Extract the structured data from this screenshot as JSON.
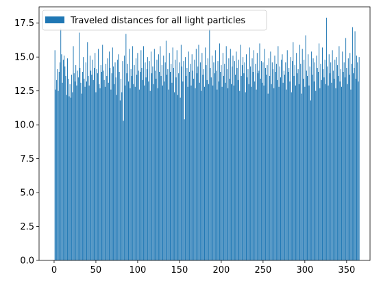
{
  "chart_data": {
    "type": "bar",
    "title": "",
    "xlabel": "",
    "ylabel": "",
    "xlim": [
      -18,
      378
    ],
    "ylim": [
      0,
      18.7
    ],
    "xticks": [
      0,
      50,
      100,
      150,
      200,
      250,
      300,
      350
    ],
    "xtick_labels": [
      "0",
      "50",
      "100",
      "150",
      "200",
      "250",
      "300",
      "350"
    ],
    "yticks": [
      0,
      2.5,
      5,
      7.5,
      10,
      12.5,
      15,
      17.5
    ],
    "ytick_labels": [
      "0.0",
      "2.5",
      "5.0",
      "7.5",
      "10.0",
      "12.5",
      "15.0",
      "17.5"
    ],
    "grid": false,
    "legend_placement": "top-left",
    "bar_color": "#1f77b4",
    "series": [
      {
        "name": "Traveled distances for all light particles",
        "x_start": 1,
        "values": [
          15.5,
          12.6,
          13.3,
          14.1,
          12.5,
          13.9,
          14.6,
          17.1,
          15.2,
          13.1,
          14.8,
          15.1,
          14.3,
          13.6,
          12.2,
          14.9,
          13.4,
          12.1,
          13.0,
          12.0,
          13.7,
          12.4,
          15.8,
          13.8,
          13.2,
          14.4,
          12.9,
          14.0,
          13.5,
          16.8,
          14.2,
          13.1,
          12.3,
          13.9,
          15.0,
          13.4,
          12.8,
          14.6,
          13.2,
          16.1,
          13.6,
          12.9,
          15.1,
          14.0,
          13.7,
          14.8,
          13.3,
          14.2,
          15.3,
          12.4,
          14.1,
          13.8,
          15.6,
          13.0,
          12.7,
          14.4,
          13.9,
          15.9,
          14.0,
          13.3,
          12.8,
          14.5,
          13.6,
          14.9,
          13.1,
          15.4,
          14.2,
          12.6,
          13.8,
          15.7,
          14.3,
          13.0,
          14.6,
          13.5,
          12.2,
          14.8,
          15.2,
          13.9,
          11.8,
          13.4,
          12.4,
          14.7,
          10.3,
          15.1,
          12.9,
          16.7,
          13.8,
          14.5,
          13.2,
          15.6,
          12.7,
          14.1,
          13.6,
          15.8,
          13.0,
          14.4,
          12.8,
          14.9,
          13.7,
          15.3,
          14.0,
          12.6,
          13.9,
          15.5,
          14.2,
          13.3,
          15.8,
          12.9,
          14.6,
          13.5,
          14.1,
          15.0,
          13.2,
          14.7,
          12.5,
          15.4,
          13.8,
          14.3,
          13.0,
          15.6,
          14.0,
          13.4,
          14.8,
          12.7,
          15.2,
          13.9,
          15.8,
          13.6,
          14.4,
          12.9,
          15.1,
          13.2,
          14.6,
          16.2,
          13.7,
          14.1,
          12.6,
          15.3,
          13.9,
          14.5,
          13.1,
          15.7,
          14.2,
          12.4,
          14.8,
          13.5,
          15.5,
          12.2,
          13.8,
          14.6,
          12.0,
          15.9,
          14.3,
          13.2,
          14.7,
          10.4,
          15.0,
          13.6,
          14.2,
          12.8,
          15.4,
          13.9,
          14.5,
          12.9,
          15.2,
          14.0,
          13.4,
          14.8,
          12.7,
          15.6,
          13.8,
          14.3,
          15.9,
          13.1,
          14.6,
          12.5,
          15.3,
          13.7,
          14.1,
          12.8,
          15.7,
          14.4,
          13.3,
          14.9,
          13.0,
          17.1,
          14.2,
          13.5,
          15.1,
          12.9,
          14.6,
          13.8,
          15.5,
          14.0,
          12.6,
          14.7,
          13.2,
          16.0,
          13.9,
          14.4,
          12.8,
          15.3,
          13.6,
          14.5,
          13.1,
          15.8,
          14.1,
          12.7,
          14.9,
          13.4,
          15.6,
          13.0,
          14.3,
          15.1,
          12.9,
          14.7,
          13.7,
          15.4,
          14.2,
          13.3,
          14.8,
          12.5,
          15.9,
          13.6,
          14.4,
          15.0,
          13.8,
          14.6,
          12.4,
          15.2,
          13.5,
          14.1,
          13.0,
          15.7,
          14.3,
          12.8,
          14.9,
          13.9,
          15.5,
          13.2,
          14.5,
          12.6,
          15.3,
          13.8,
          14.0,
          16.0,
          13.4,
          14.7,
          13.1,
          14.6,
          12.9,
          15.6,
          14.2,
          13.7,
          14.4,
          12.3,
          14.9,
          13.6,
          15.4,
          13.0,
          14.6,
          14.1,
          12.7,
          15.1,
          13.9,
          14.5,
          13.3,
          15.8,
          12.8,
          14.3,
          13.5,
          14.8,
          15.2,
          13.1,
          14.0,
          13.7,
          14.6,
          12.6,
          15.5,
          13.9,
          14.2,
          13.2,
          15.0,
          12.4,
          14.7,
          16.1,
          13.6,
          14.4,
          12.9,
          15.3,
          13.8,
          14.1,
          13.0,
          15.9,
          14.5,
          12.3,
          15.6,
          13.4,
          14.8,
          12.8,
          16.6,
          14.0,
          13.6,
          15.2,
          12.9,
          14.3,
          11.8,
          15.4,
          13.7,
          14.9,
          13.2,
          14.6,
          12.5,
          15.1,
          14.2,
          13.9,
          16.0,
          12.7,
          14.5,
          13.3,
          15.7,
          14.1,
          13.5,
          14.8,
          13.0,
          17.9,
          14.3,
          12.9,
          15.2,
          13.8,
          14.6,
          13.1,
          15.5,
          14.0,
          13.4,
          14.8,
          12.7,
          15.0,
          14.4,
          13.6,
          15.8,
          13.2,
          14.1,
          12.8,
          15.4,
          13.9,
          14.6,
          13.5,
          16.4,
          14.2,
          13.0,
          14.9,
          13.7,
          15.3,
          12.6,
          14.5,
          17.2,
          13.8,
          14.2,
          16.9,
          13.4,
          15.1,
          14.6,
          13.2,
          15.0
        ]
      }
    ]
  }
}
